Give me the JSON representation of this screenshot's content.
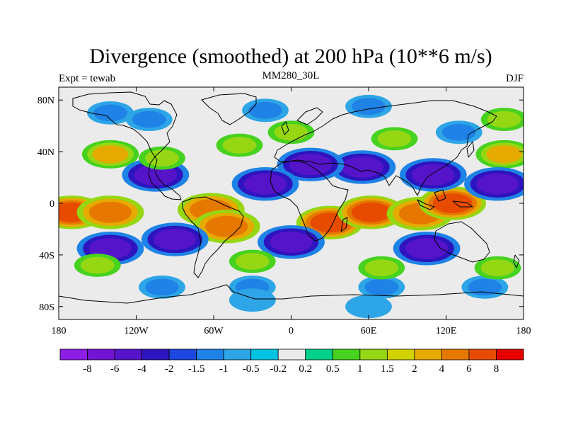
{
  "title": "Divergence (smoothed) at 200 hPa (10**6 m/s)",
  "left_label": "Expt = tewab",
  "center_label": "MM280_30L",
  "right_label": "DJF",
  "chart_data": {
    "type": "heatmap",
    "projection": "cylindrical-equidistant",
    "lon_range": [
      -180,
      180
    ],
    "lat_range": [
      -90,
      90
    ],
    "x_ticks": [
      {
        "value": -180,
        "label": "180"
      },
      {
        "value": -120,
        "label": "120W"
      },
      {
        "value": -60,
        "label": "60W"
      },
      {
        "value": 0,
        "label": "0"
      },
      {
        "value": 60,
        "label": "60E"
      },
      {
        "value": 120,
        "label": "120E"
      },
      {
        "value": 180,
        "label": "180"
      }
    ],
    "y_ticks": [
      {
        "value": 80,
        "label": "80N"
      },
      {
        "value": 40,
        "label": "40N"
      },
      {
        "value": 0,
        "label": "0"
      },
      {
        "value": -40,
        "label": "40S"
      },
      {
        "value": -80,
        "label": "80S"
      }
    ],
    "colorbar": {
      "labels": [
        "-8",
        "-6",
        "-4",
        "-2",
        "-1.5",
        "-1",
        "-0.5",
        "-0.2",
        "0.2",
        "0.5",
        "1",
        "1.5",
        "2",
        "4",
        "6",
        "8"
      ],
      "colors": [
        "#8c1ee6",
        "#7314d2",
        "#5514c8",
        "#2d14be",
        "#1e46e1",
        "#1e82e6",
        "#2da5e6",
        "#00c3e1",
        "#ebebeb",
        "#00d28c",
        "#46d21e",
        "#96d714",
        "#d2d200",
        "#e6aa00",
        "#e67800",
        "#e64b00",
        "#e60000"
      ]
    },
    "features": [
      {
        "lon": 30,
        "lat": -15,
        "value": 6
      },
      {
        "lon": 62,
        "lat": -7,
        "value": 6
      },
      {
        "lon": 100,
        "lat": -8,
        "value": 4
      },
      {
        "lon": 125,
        "lat": 0,
        "value": 6
      },
      {
        "lon": -170,
        "lat": -7,
        "value": 6
      },
      {
        "lon": -140,
        "lat": -7,
        "value": 4
      },
      {
        "lon": -62,
        "lat": -5,
        "value": 4
      },
      {
        "lon": -50,
        "lat": -18,
        "value": 4
      },
      {
        "lon": -140,
        "lat": 38,
        "value": 2
      },
      {
        "lon": 165,
        "lat": 38,
        "value": 2
      },
      {
        "lon": 55,
        "lat": 28,
        "value": -4
      },
      {
        "lon": 15,
        "lat": 30,
        "value": -4
      },
      {
        "lon": -20,
        "lat": 15,
        "value": -4
      },
      {
        "lon": 110,
        "lat": 22,
        "value": -4
      },
      {
        "lon": 160,
        "lat": 15,
        "value": -4
      },
      {
        "lon": -105,
        "lat": 22,
        "value": -4
      },
      {
        "lon": 0,
        "lat": -30,
        "value": -4
      },
      {
        "lon": 105,
        "lat": -35,
        "value": -4
      },
      {
        "lon": -140,
        "lat": -35,
        "value": -4
      },
      {
        "lon": -90,
        "lat": -28,
        "value": -4
      },
      {
        "lon": -110,
        "lat": 65,
        "value": -1
      },
      {
        "lon": -20,
        "lat": 72,
        "value": -1
      },
      {
        "lon": 60,
        "lat": 75,
        "value": -1
      },
      {
        "lon": 130,
        "lat": 55,
        "value": -1
      },
      {
        "lon": -140,
        "lat": 70,
        "value": -1
      },
      {
        "lon": -30,
        "lat": -65,
        "value": -1
      },
      {
        "lon": 70,
        "lat": -65,
        "value": -1
      },
      {
        "lon": 150,
        "lat": -65,
        "value": -1
      },
      {
        "lon": -100,
        "lat": -65,
        "value": -1
      },
      {
        "lon": 70,
        "lat": -50,
        "value": 1
      },
      {
        "lon": -30,
        "lat": -45,
        "value": 1
      },
      {
        "lon": 160,
        "lat": -50,
        "value": 1
      },
      {
        "lon": -150,
        "lat": -48,
        "value": 1
      },
      {
        "lon": 80,
        "lat": 50,
        "value": 1
      },
      {
        "lon": 0,
        "lat": 55,
        "value": 1
      },
      {
        "lon": -40,
        "lat": 45,
        "value": 1
      },
      {
        "lon": 165,
        "lat": 65,
        "value": 1
      },
      {
        "lon": -100,
        "lat": 35,
        "value": 1
      },
      {
        "lon": -30,
        "lat": -75,
        "value": -0.5
      },
      {
        "lon": 60,
        "lat": -80,
        "value": -0.5
      }
    ]
  }
}
